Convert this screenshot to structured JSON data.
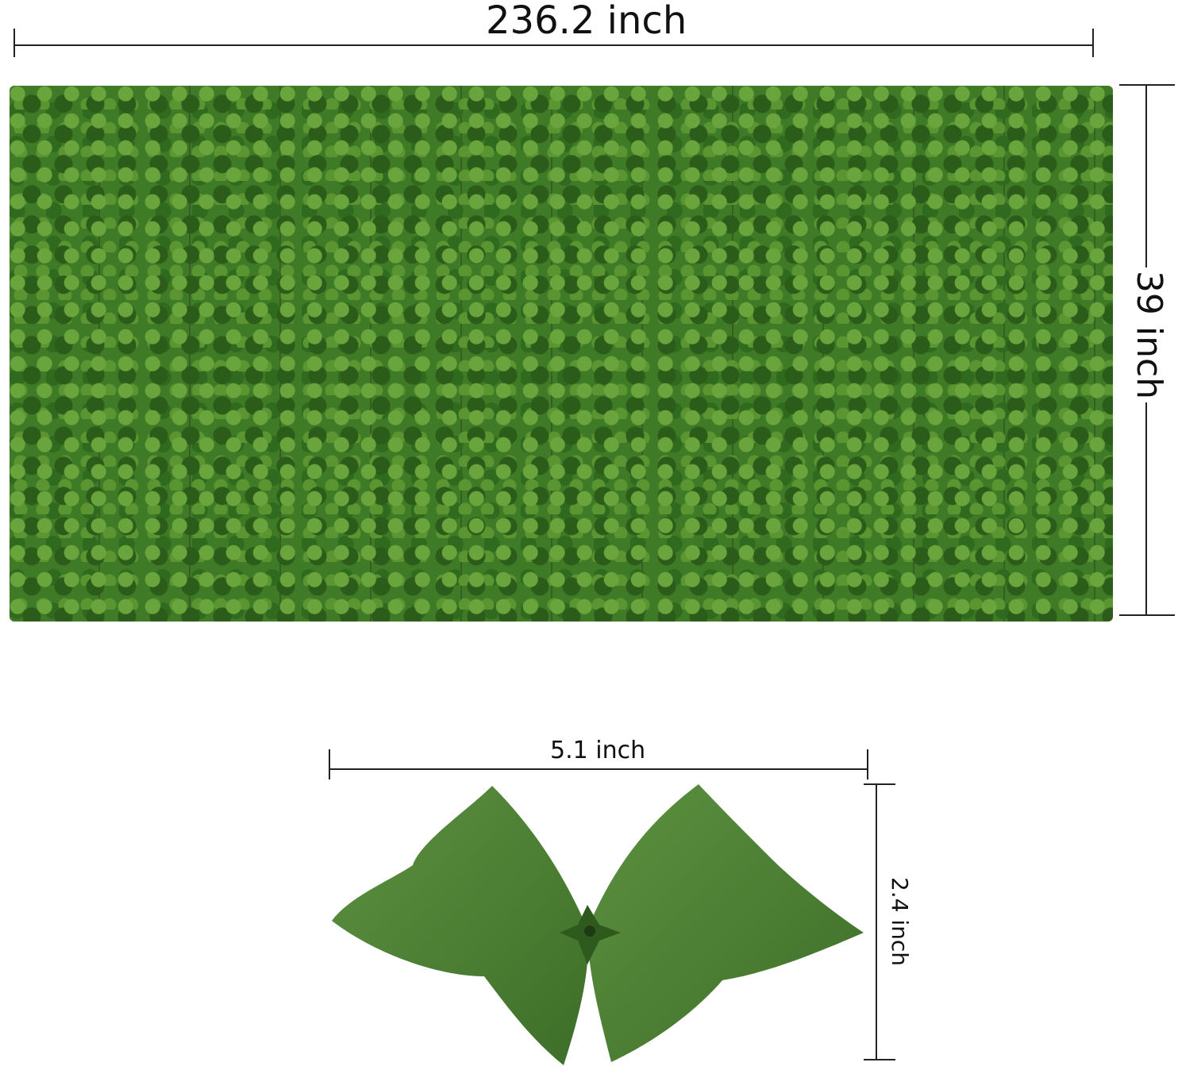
{
  "panel": {
    "width_label": "236.2 inch",
    "height_label": "39 inch",
    "color": "#3f7a26"
  },
  "leaf": {
    "width_label": "5.1 inch",
    "height_label": "2.4 inch",
    "color": "#4a7f32"
  }
}
